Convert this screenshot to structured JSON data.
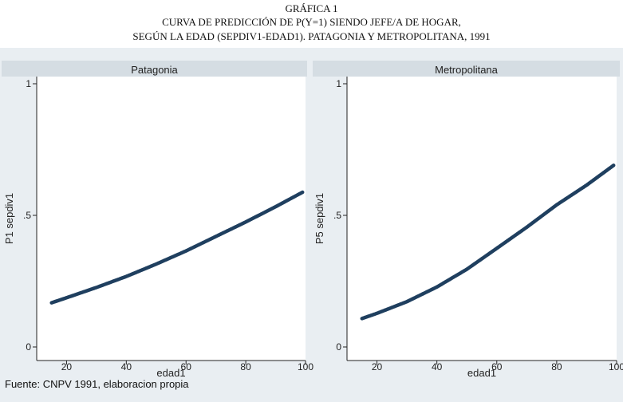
{
  "figure": {
    "label": "GRÁFICA 1",
    "title_line1": "CURVA DE PREDICCIÓN DE P(Y=1) SIENDO JEFE/A DE HOGAR,",
    "title_line2": "SEGÚN LA EDAD (SEPDIV1-EDAD1). PATAGONIA Y METROPOLITANA, 1991",
    "source": "Fuente: CNPV 1991, elaboracion propia"
  },
  "colors": {
    "line": "#1f3f5f",
    "background": "#e9eef2",
    "panel_header": "#d5dde3",
    "plot_area": "#ffffff"
  },
  "chart_data": [
    {
      "type": "line",
      "title": "Patagonia",
      "xlabel": "edad1",
      "ylabel": "P1 sepdiv1",
      "xlim": [
        10,
        100
      ],
      "ylim": [
        0,
        1
      ],
      "xticks": [
        20,
        40,
        60,
        80,
        100
      ],
      "xtick_labels": [
        "20",
        "40",
        "60",
        "80",
        "100"
      ],
      "yticks": [
        0,
        0.5,
        1
      ],
      "ytick_labels": [
        "0",
        ".5",
        "1"
      ],
      "series": [
        {
          "name": "P1 sepdiv1",
          "x": [
            15,
            20,
            30,
            40,
            50,
            60,
            70,
            80,
            90,
            99
          ],
          "y": [
            0.168,
            0.187,
            0.226,
            0.268,
            0.315,
            0.365,
            0.42,
            0.475,
            0.533,
            0.588
          ]
        }
      ]
    },
    {
      "type": "line",
      "title": "Metropolitana",
      "xlabel": "edad1",
      "ylabel": "P5 sepdiv1",
      "xlim": [
        10,
        100
      ],
      "ylim": [
        0,
        1
      ],
      "xticks": [
        20,
        40,
        60,
        80,
        100
      ],
      "xtick_labels": [
        "20",
        "40",
        "60",
        "80",
        "100"
      ],
      "yticks": [
        0,
        0.5,
        1
      ],
      "ytick_labels": [
        "0",
        ".5",
        "1"
      ],
      "series": [
        {
          "name": "P5 sepdiv1",
          "x": [
            15,
            20,
            30,
            40,
            50,
            60,
            70,
            80,
            90,
            99
          ],
          "y": [
            0.108,
            0.128,
            0.172,
            0.228,
            0.295,
            0.375,
            0.455,
            0.54,
            0.615,
            0.69
          ]
        }
      ]
    }
  ]
}
